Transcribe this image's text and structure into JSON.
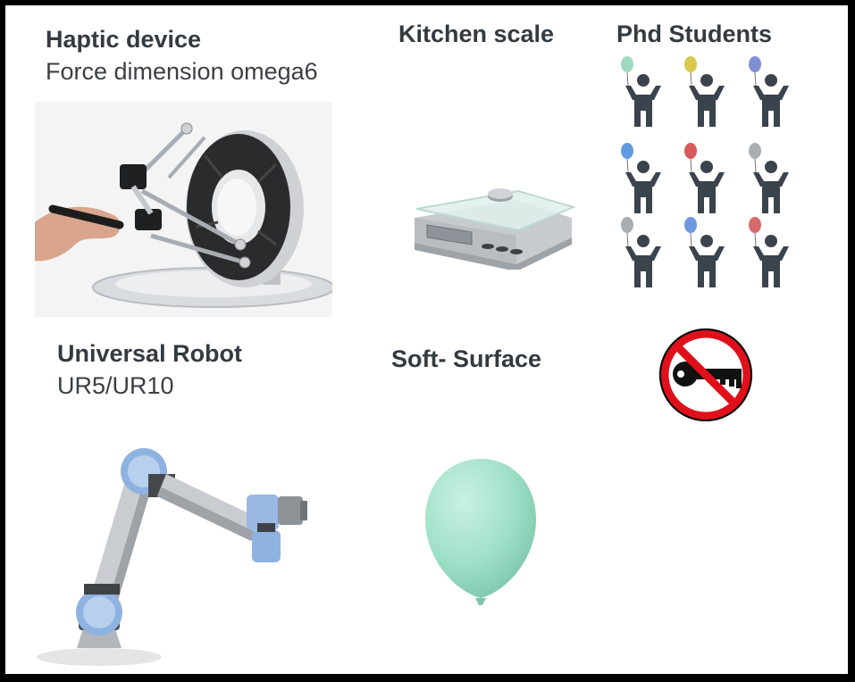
{
  "haptic": {
    "title": "Haptic device",
    "subtitle": "Force dimension omega6"
  },
  "scale": {
    "title": "Kitchen scale"
  },
  "students": {
    "title": "Phd Students",
    "balloon_colors": [
      "#9fd9c3",
      "#d9c84a",
      "#7f8fd6",
      "#5f9be0",
      "#d95a5a",
      "#a9aeb3",
      "#a9aeb3",
      "#6f96e0",
      "#d96a6a"
    ],
    "figure_color": "#3b434c"
  },
  "robot": {
    "title": "Universal Robot",
    "subtitle": "UR5/UR10"
  },
  "soft": {
    "title": "Soft- Surface",
    "balloon_color": "#9fe0c8"
  },
  "no_key": {
    "icon": "no-key-icon",
    "ring_color": "#e0101a",
    "key_color": "#111111"
  }
}
